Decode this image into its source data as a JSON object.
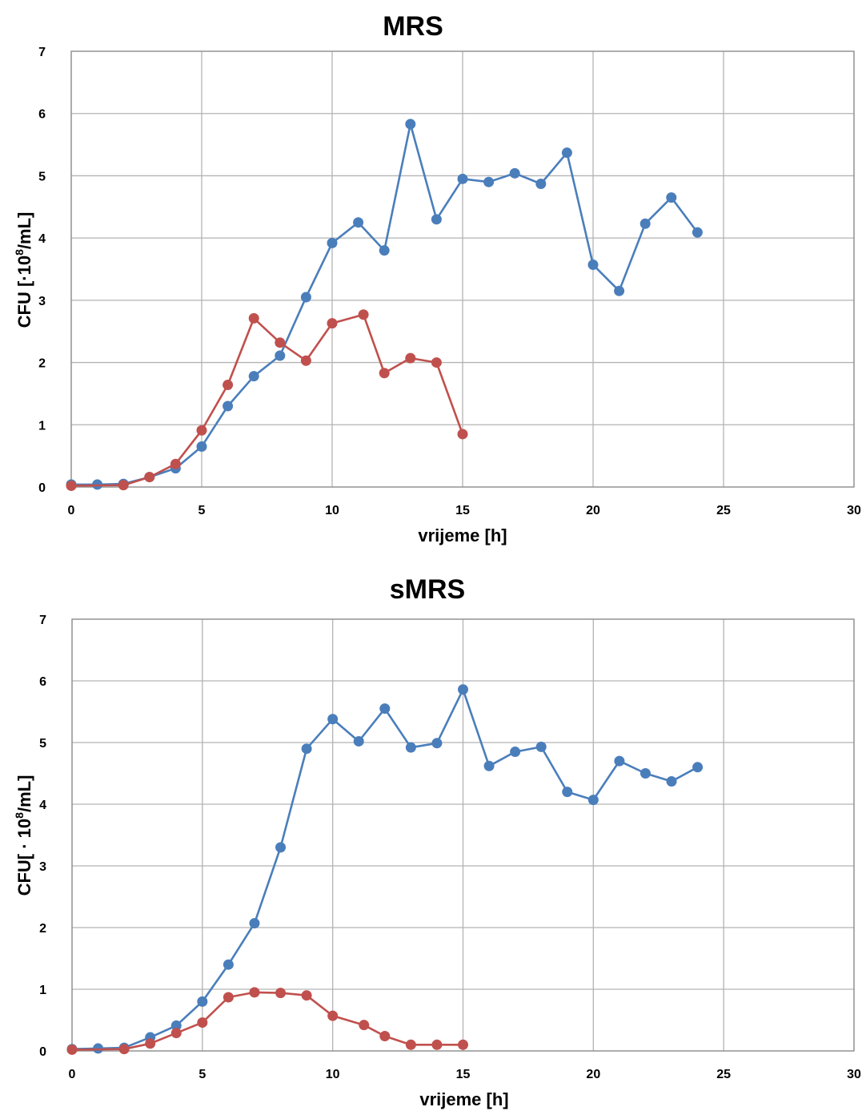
{
  "chart_data": [
    {
      "type": "line",
      "title": "MRS",
      "xlabel": "vrijeme [h]",
      "ylabel": "CFU [·10",
      "ylabel_sup": "8",
      "ylabel_tail": "/mL]",
      "xlim": [
        0,
        30
      ],
      "ylim": [
        0,
        7
      ],
      "xticks": [
        0,
        5,
        10,
        15,
        20,
        25,
        30
      ],
      "yticks": [
        0,
        1,
        2,
        3,
        4,
        5,
        6,
        7
      ],
      "grid": true,
      "series": [
        {
          "color": "#4a7ebb",
          "x": [
            0,
            1,
            2,
            3,
            4,
            5,
            6,
            7,
            8,
            9,
            10,
            11,
            12,
            13,
            14,
            15,
            16,
            17,
            18,
            19,
            20,
            21,
            22,
            23,
            24
          ],
          "y": [
            0.04,
            0.04,
            0.05,
            0.16,
            0.3,
            0.65,
            1.3,
            1.78,
            2.11,
            3.05,
            3.92,
            4.25,
            3.8,
            5.83,
            4.3,
            4.95,
            4.9,
            5.04,
            4.87,
            5.37,
            3.57,
            3.15,
            4.23,
            4.65,
            4.09
          ]
        },
        {
          "color": "#c0504d",
          "x": [
            0,
            2,
            3,
            4,
            5,
            6,
            7,
            8,
            9,
            10,
            11.2,
            12,
            13,
            14,
            15
          ],
          "y": [
            0.02,
            0.03,
            0.16,
            0.37,
            0.91,
            1.64,
            2.71,
            2.32,
            2.03,
            2.63,
            2.77,
            1.83,
            2.07,
            2.0,
            0.85
          ]
        }
      ]
    },
    {
      "type": "line",
      "title": "sMRS",
      "xlabel": "vrijeme [h]",
      "ylabel": "CFU[ · 10",
      "ylabel_sup": "8",
      "ylabel_tail": "/mL]",
      "xlim": [
        0,
        30
      ],
      "ylim": [
        0,
        7
      ],
      "xticks": [
        0,
        5,
        10,
        15,
        20,
        25,
        30
      ],
      "yticks": [
        0,
        1,
        2,
        3,
        4,
        5,
        6,
        7
      ],
      "grid": true,
      "series": [
        {
          "color": "#4a7ebb",
          "x": [
            0,
            1,
            2,
            3,
            4,
            5,
            6,
            7,
            8,
            9,
            10,
            11,
            12,
            13,
            14,
            15,
            16,
            17,
            18,
            19,
            20,
            21,
            22,
            23,
            24
          ],
          "y": [
            0.03,
            0.04,
            0.05,
            0.22,
            0.41,
            0.8,
            1.4,
            2.07,
            3.3,
            4.9,
            5.38,
            5.02,
            5.55,
            4.92,
            4.99,
            5.86,
            4.62,
            4.85,
            4.93,
            4.2,
            4.07,
            4.7,
            4.5,
            4.37,
            4.6
          ]
        },
        {
          "color": "#c0504d",
          "x": [
            0,
            2,
            3,
            4,
            5,
            6,
            7,
            8,
            9,
            10,
            11.2,
            12,
            13,
            14,
            15
          ],
          "y": [
            0.02,
            0.03,
            0.12,
            0.29,
            0.46,
            0.87,
            0.95,
            0.94,
            0.9,
            0.57,
            0.42,
            0.24,
            0.1,
            0.1,
            0.1
          ]
        }
      ]
    }
  ]
}
